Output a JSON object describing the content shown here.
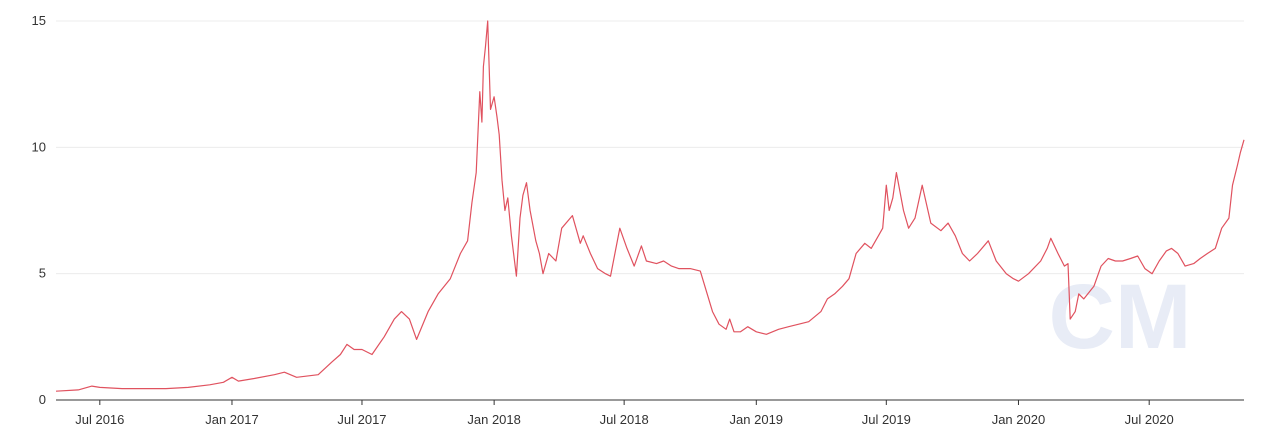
{
  "chart_data": {
    "type": "line",
    "title": "",
    "xlabel": "",
    "ylabel": "",
    "xlim": [
      "2016-05-01",
      "2020-11-10"
    ],
    "ylim": [
      0,
      15
    ],
    "y_ticks": [
      0,
      5,
      10,
      15
    ],
    "x_ticks": [
      "Jul 2016",
      "Jan 2017",
      "Jul 2017",
      "Jan 2018",
      "Jul 2018",
      "Jan 2019",
      "Jul 2019",
      "Jan 2020",
      "Jul 2020"
    ],
    "grid": "horizontal",
    "line_color": "#e0525f",
    "watermark": "CM",
    "series": [
      {
        "x": [
          "2016-05-01",
          "2016-06-01",
          "2016-06-20",
          "2016-07-01",
          "2016-08-01",
          "2016-09-01",
          "2016-10-01",
          "2016-11-01",
          "2016-12-01",
          "2016-12-20",
          "2017-01-01",
          "2017-01-10",
          "2017-02-01",
          "2017-03-01",
          "2017-03-15",
          "2017-04-01",
          "2017-05-01",
          "2017-05-20",
          "2017-06-01",
          "2017-06-10",
          "2017-06-20",
          "2017-07-01",
          "2017-07-15",
          "2017-08-01",
          "2017-08-15",
          "2017-08-25",
          "2017-09-05",
          "2017-09-15",
          "2017-10-01",
          "2017-10-15",
          "2017-11-01",
          "2017-11-15",
          "2017-11-25",
          "2017-12-01",
          "2017-12-07",
          "2017-12-12",
          "2017-12-15",
          "2017-12-17",
          "2017-12-20",
          "2017-12-23",
          "2017-12-27",
          "2018-01-01",
          "2018-01-05",
          "2018-01-08",
          "2018-01-12",
          "2018-01-16",
          "2018-01-20",
          "2018-01-25",
          "2018-02-01",
          "2018-02-06",
          "2018-02-10",
          "2018-02-15",
          "2018-02-20",
          "2018-02-28",
          "2018-03-05",
          "2018-03-10",
          "2018-03-18",
          "2018-03-28",
          "2018-04-05",
          "2018-04-20",
          "2018-05-01",
          "2018-05-05",
          "2018-05-15",
          "2018-05-25",
          "2018-06-05",
          "2018-06-12",
          "2018-06-25",
          "2018-07-05",
          "2018-07-15",
          "2018-07-25",
          "2018-08-01",
          "2018-08-15",
          "2018-08-25",
          "2018-09-05",
          "2018-09-15",
          "2018-10-01",
          "2018-10-15",
          "2018-11-01",
          "2018-11-10",
          "2018-11-20",
          "2018-11-25",
          "2018-12-01",
          "2018-12-10",
          "2018-12-20",
          "2019-01-01",
          "2019-01-15",
          "2019-02-01",
          "2019-02-15",
          "2019-03-01",
          "2019-03-15",
          "2019-04-01",
          "2019-04-10",
          "2019-04-20",
          "2019-05-01",
          "2019-05-10",
          "2019-05-20",
          "2019-06-01",
          "2019-06-10",
          "2019-06-20",
          "2019-06-26",
          "2019-07-01",
          "2019-07-05",
          "2019-07-10",
          "2019-07-15",
          "2019-07-25",
          "2019-08-01",
          "2019-08-10",
          "2019-08-20",
          "2019-09-01",
          "2019-09-15",
          "2019-09-25",
          "2019-10-05",
          "2019-10-15",
          "2019-10-25",
          "2019-11-05",
          "2019-11-20",
          "2019-12-01",
          "2019-12-15",
          "2019-12-25",
          "2020-01-01",
          "2020-01-15",
          "2020-02-01",
          "2020-02-10",
          "2020-02-15",
          "2020-02-25",
          "2020-03-05",
          "2020-03-10",
          "2020-03-13",
          "2020-03-20",
          "2020-03-25",
          "2020-04-01",
          "2020-04-15",
          "2020-04-25",
          "2020-05-05",
          "2020-05-15",
          "2020-05-25",
          "2020-06-05",
          "2020-06-15",
          "2020-06-25",
          "2020-07-05",
          "2020-07-15",
          "2020-07-25",
          "2020-08-01",
          "2020-08-10",
          "2020-08-20",
          "2020-09-01",
          "2020-09-10",
          "2020-09-20",
          "2020-10-01",
          "2020-10-10",
          "2020-10-20",
          "2020-10-25",
          "2020-11-01",
          "2020-11-05",
          "2020-11-10"
        ],
        "y": [
          0.35,
          0.4,
          0.55,
          0.5,
          0.45,
          0.45,
          0.45,
          0.5,
          0.6,
          0.7,
          0.9,
          0.75,
          0.85,
          1.0,
          1.1,
          0.9,
          1.0,
          1.5,
          1.8,
          2.2,
          2.0,
          2.0,
          1.8,
          2.5,
          3.2,
          3.5,
          3.2,
          2.4,
          3.5,
          4.2,
          4.8,
          5.8,
          6.3,
          7.8,
          9.0,
          12.2,
          11.0,
          13.2,
          14.0,
          15.0,
          11.5,
          12.0,
          11.2,
          10.5,
          8.7,
          7.5,
          8.0,
          6.5,
          4.9,
          7.2,
          8.1,
          8.6,
          7.5,
          6.3,
          5.8,
          5.0,
          5.8,
          5.5,
          6.8,
          7.3,
          6.2,
          6.5,
          5.8,
          5.2,
          5.0,
          4.9,
          6.8,
          6.0,
          5.3,
          6.1,
          5.5,
          5.4,
          5.5,
          5.3,
          5.2,
          5.2,
          5.1,
          3.5,
          3.0,
          2.8,
          3.2,
          2.7,
          2.7,
          2.9,
          2.7,
          2.6,
          2.8,
          2.9,
          3.0,
          3.1,
          3.5,
          4.0,
          4.2,
          4.5,
          4.8,
          5.8,
          6.2,
          6.0,
          6.5,
          6.8,
          8.5,
          7.5,
          8.0,
          9.0,
          7.5,
          6.8,
          7.2,
          8.5,
          7.0,
          6.7,
          7.0,
          6.5,
          5.8,
          5.5,
          5.8,
          6.3,
          5.5,
          5.0,
          4.8,
          4.7,
          5.0,
          5.5,
          6.0,
          6.4,
          5.8,
          5.3,
          5.4,
          3.2,
          3.5,
          4.2,
          4.0,
          4.5,
          5.3,
          5.6,
          5.5,
          5.5,
          5.6,
          5.7,
          5.2,
          5.0,
          5.5,
          5.9,
          6.0,
          5.8,
          5.3,
          5.4,
          5.6,
          5.8,
          6.0,
          6.8,
          7.2,
          8.5,
          9.3,
          9.8,
          10.3
        ]
      }
    ]
  }
}
